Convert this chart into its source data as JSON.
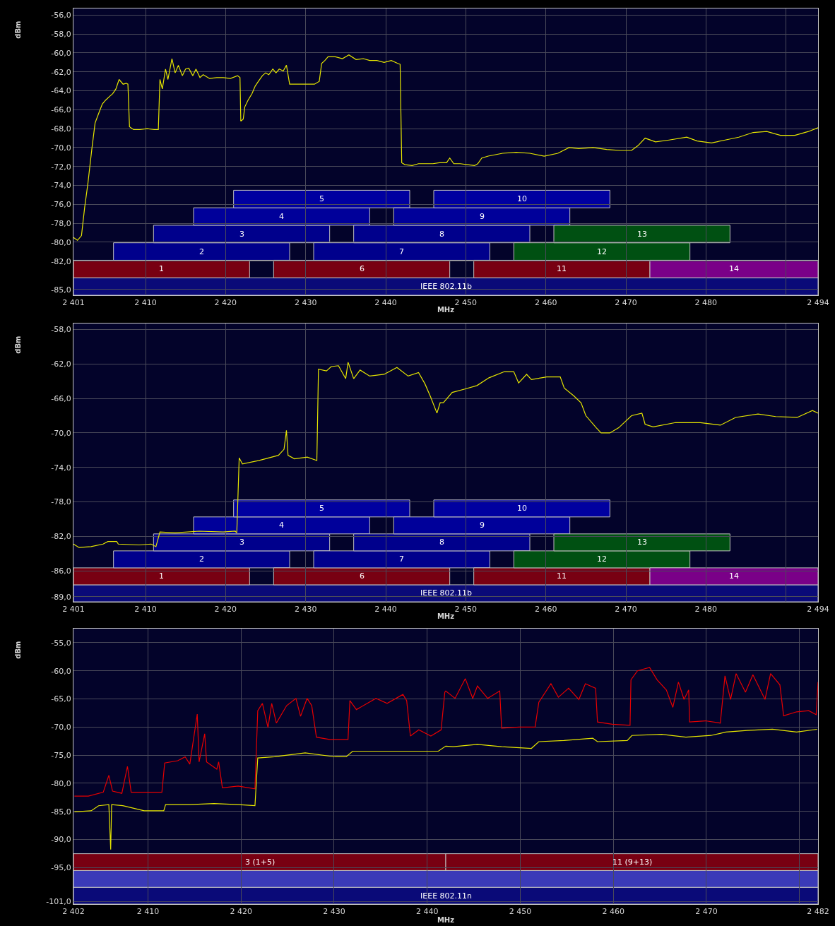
{
  "chart_data": [
    {
      "type": "line",
      "xlabel": "MHz",
      "ylabel": "dBm",
      "grid": true,
      "marker": "none",
      "line_style": "solid",
      "xlim": [
        2401,
        2494
      ],
      "xticks": [
        {
          "value": 2401,
          "label": "2 401"
        },
        {
          "value": 2410,
          "label": "2 410"
        },
        {
          "value": 2420,
          "label": "2 420"
        },
        {
          "value": 2430,
          "label": "2 430"
        },
        {
          "value": 2440,
          "label": "2 440"
        },
        {
          "value": 2450,
          "label": "2 450"
        },
        {
          "value": 2460,
          "label": "2 460"
        },
        {
          "value": 2470,
          "label": "2 470"
        },
        {
          "value": 2480,
          "label": "2 480"
        },
        {
          "value": 2490,
          "label": null
        },
        {
          "value": 2494,
          "label": "2 494"
        }
      ],
      "ylim": [
        -85.6,
        -55.3
      ],
      "yticks": [
        {
          "value": -56,
          "label": "-56,0"
        },
        {
          "value": -58,
          "label": "-58,0"
        },
        {
          "value": -60,
          "label": "-60,0"
        },
        {
          "value": -62,
          "label": "-62,0"
        },
        {
          "value": -64,
          "label": "-64,0"
        },
        {
          "value": -66,
          "label": "-66,0"
        },
        {
          "value": -68,
          "label": "-68,0"
        },
        {
          "value": -70,
          "label": "-70,0"
        },
        {
          "value": -72,
          "label": "-72,0"
        },
        {
          "value": -74,
          "label": "-74,0"
        },
        {
          "value": -76,
          "label": "-76,0"
        },
        {
          "value": -78,
          "label": "-78,0"
        },
        {
          "value": -80,
          "label": "-80,0"
        },
        {
          "value": -82,
          "label": "-82,0"
        },
        {
          "value": -85,
          "label": "-85,0"
        }
      ],
      "bands": [
        {
          "axis": "x",
          "from": 2401,
          "to": 2494,
          "label": "IEEE 802.11b",
          "color": "#0a0a78"
        },
        {
          "axis": "x",
          "from": 2401,
          "to": 2423,
          "label": "1",
          "color": "#780012"
        },
        {
          "axis": "x",
          "from": 2406,
          "to": 2428,
          "label": "2",
          "color": "#00008c"
        },
        {
          "axis": "x",
          "from": 2411,
          "to": 2433,
          "label": "3",
          "color": "#00008c"
        },
        {
          "axis": "x",
          "from": 2416,
          "to": 2438,
          "label": "4",
          "color": "#00009a"
        },
        {
          "axis": "x",
          "from": 2421,
          "to": 2443,
          "label": "5",
          "color": "#0000a0"
        },
        {
          "axis": "x",
          "from": 2426,
          "to": 2448,
          "label": "6",
          "color": "#780012"
        },
        {
          "axis": "x",
          "from": 2431,
          "to": 2453,
          "label": "7",
          "color": "#00008c"
        },
        {
          "axis": "x",
          "from": 2436,
          "to": 2458,
          "label": "8",
          "color": "#00008c"
        },
        {
          "axis": "x",
          "from": 2441,
          "to": 2463,
          "label": "9",
          "color": "#00009a"
        },
        {
          "axis": "x",
          "from": 2446,
          "to": 2468,
          "label": "10",
          "color": "#0000a0"
        },
        {
          "axis": "x",
          "from": 2451,
          "to": 2473,
          "label": "11",
          "color": "#780012"
        },
        {
          "axis": "x",
          "from": 2456,
          "to": 2478,
          "label": "12",
          "color": "#005012"
        },
        {
          "axis": "x",
          "from": 2461,
          "to": 2483,
          "label": "13",
          "color": "#005012"
        },
        {
          "axis": "x",
          "from": 2473,
          "to": 2494,
          "label": "14",
          "color": "#7a0088"
        }
      ],
      "series": [
        {
          "color": "#e6e600",
          "x": [
            2401,
            2401.5,
            2402,
            2402.4,
            2402.8,
            2403.3,
            2403.7,
            2404.1,
            2404.6,
            2405,
            2405.5,
            2405.9,
            2406.3,
            2406.7,
            2407.2,
            2407.6,
            2407.8,
            2408,
            2408.5,
            2409.3,
            2410.2,
            2411.1,
            2411.6,
            2411.8,
            2412.1,
            2412.5,
            2412.8,
            2413.3,
            2413.7,
            2414.1,
            2414.6,
            2415,
            2415.4,
            2415.9,
            2416.3,
            2416.8,
            2417.2,
            2418,
            2418.9,
            2419.7,
            2420.6,
            2421.5,
            2421.8,
            2421.9,
            2422.2,
            2422.4,
            2422.8,
            2423.3,
            2423.7,
            2424.1,
            2424.6,
            2425,
            2425.4,
            2425.9,
            2426.3,
            2426.7,
            2427.2,
            2427.6,
            2428,
            2428.5,
            2429.3,
            2430.2,
            2431.1,
            2431.7,
            2432,
            2432.4,
            2432.8,
            2433.7,
            2434.6,
            2435.4,
            2436.3,
            2437.2,
            2438,
            2438.9,
            2439.8,
            2440.7,
            2441.5,
            2441.8,
            2442,
            2442.4,
            2443.3,
            2444.1,
            2445,
            2445.9,
            2446.7,
            2447.6,
            2448,
            2448.5,
            2449.3,
            2450.2,
            2451.1,
            2451.5,
            2452,
            2452.8,
            2454.6,
            2456.3,
            2458,
            2459.8,
            2461.5,
            2462.9,
            2464.1,
            2465.9,
            2467.6,
            2469.3,
            2470.7,
            2471.5,
            2472.4,
            2473.7,
            2475.4,
            2477.6,
            2478.9,
            2480.7,
            2482.4,
            2484.1,
            2485.9,
            2487.6,
            2489.3,
            2491.1,
            2492.8,
            2494
          ],
          "values": [
            -79.5,
            -79.8,
            -79.3,
            -76.3,
            -73.8,
            -70.1,
            -67.4,
            -66.5,
            -65.4,
            -65.0,
            -64.6,
            -64.3,
            -63.8,
            -62.8,
            -63.3,
            -63.2,
            -63.3,
            -67.8,
            -68.1,
            -68.1,
            -68.0,
            -68.1,
            -68.1,
            -62.8,
            -63.8,
            -61.7,
            -62.8,
            -60.6,
            -62.1,
            -61.3,
            -62.4,
            -61.7,
            -61.6,
            -62.4,
            -61.7,
            -62.6,
            -62.3,
            -62.7,
            -62.6,
            -62.6,
            -62.7,
            -62.4,
            -62.6,
            -67.2,
            -67.0,
            -65.7,
            -65.0,
            -64.3,
            -63.5,
            -63.0,
            -62.4,
            -62.1,
            -62.3,
            -61.7,
            -62.1,
            -61.7,
            -61.9,
            -61.3,
            -63.3,
            -63.3,
            -63.3,
            -63.3,
            -63.3,
            -63.0,
            -61.1,
            -60.8,
            -60.4,
            -60.4,
            -60.6,
            -60.2,
            -60.7,
            -60.6,
            -60.8,
            -60.8,
            -61.0,
            -60.8,
            -61.1,
            -61.2,
            -71.6,
            -71.8,
            -71.9,
            -71.7,
            -71.7,
            -71.7,
            -71.6,
            -71.6,
            -71.1,
            -71.7,
            -71.7,
            -71.8,
            -71.9,
            -71.7,
            -71.1,
            -70.9,
            -70.6,
            -70.5,
            -70.6,
            -70.9,
            -70.6,
            -70.0,
            -70.1,
            -70.0,
            -70.2,
            -70.3,
            -70.3,
            -69.8,
            -69.0,
            -69.4,
            -69.2,
            -68.9,
            -69.3,
            -69.5,
            -69.2,
            -68.9,
            -68.4,
            -68.3,
            -68.7,
            -68.7,
            -68.3,
            -67.9
          ]
        }
      ]
    },
    {
      "type": "line",
      "xlabel": "MHz",
      "ylabel": "dBm",
      "grid": true,
      "marker": "none",
      "line_style": "solid",
      "xlim": [
        2401,
        2494
      ],
      "xticks": [
        {
          "value": 2401,
          "label": "2 401"
        },
        {
          "value": 2410,
          "label": "2 410"
        },
        {
          "value": 2420,
          "label": "2 420"
        },
        {
          "value": 2430,
          "label": "2 430"
        },
        {
          "value": 2440,
          "label": "2 440"
        },
        {
          "value": 2450,
          "label": "2 450"
        },
        {
          "value": 2460,
          "label": "2 460"
        },
        {
          "value": 2470,
          "label": "2 470"
        },
        {
          "value": 2480,
          "label": "2 480"
        },
        {
          "value": 2490,
          "label": null
        },
        {
          "value": 2494,
          "label": "2 494"
        }
      ],
      "ylim": [
        -89.6,
        -57.3
      ],
      "yticks": [
        {
          "value": -58,
          "label": "-58,0"
        },
        {
          "value": -62,
          "label": "-62,0"
        },
        {
          "value": -66,
          "label": "-66,0"
        },
        {
          "value": -70,
          "label": "-70,0"
        },
        {
          "value": -74,
          "label": "-74,0"
        },
        {
          "value": -78,
          "label": "-78,0"
        },
        {
          "value": -82,
          "label": "-82,0"
        },
        {
          "value": -86,
          "label": "-86,0"
        },
        {
          "value": -89,
          "label": "-89,0"
        }
      ],
      "bands": [
        {
          "axis": "x",
          "from": 2401,
          "to": 2494,
          "label": "IEEE 802.11b",
          "color": "#0a0a78"
        },
        {
          "axis": "x",
          "from": 2401,
          "to": 2423,
          "label": "1",
          "color": "#780012"
        },
        {
          "axis": "x",
          "from": 2406,
          "to": 2428,
          "label": "2",
          "color": "#00008c"
        },
        {
          "axis": "x",
          "from": 2411,
          "to": 2433,
          "label": "3",
          "color": "#00008c"
        },
        {
          "axis": "x",
          "from": 2416,
          "to": 2438,
          "label": "4",
          "color": "#00009a"
        },
        {
          "axis": "x",
          "from": 2421,
          "to": 2443,
          "label": "5",
          "color": "#0000a0"
        },
        {
          "axis": "x",
          "from": 2426,
          "to": 2448,
          "label": "6",
          "color": "#780012"
        },
        {
          "axis": "x",
          "from": 2431,
          "to": 2453,
          "label": "7",
          "color": "#00008c"
        },
        {
          "axis": "x",
          "from": 2436,
          "to": 2458,
          "label": "8",
          "color": "#00008c"
        },
        {
          "axis": "x",
          "from": 2441,
          "to": 2463,
          "label": "9",
          "color": "#00009a"
        },
        {
          "axis": "x",
          "from": 2446,
          "to": 2468,
          "label": "10",
          "color": "#0000a0"
        },
        {
          "axis": "x",
          "from": 2451,
          "to": 2473,
          "label": "11",
          "color": "#780012"
        },
        {
          "axis": "x",
          "from": 2456,
          "to": 2478,
          "label": "12",
          "color": "#005012"
        },
        {
          "axis": "x",
          "from": 2461,
          "to": 2483,
          "label": "13",
          "color": "#005012"
        },
        {
          "axis": "x",
          "from": 2473,
          "to": 2494,
          "label": "14",
          "color": "#7a0088"
        }
      ],
      "series": [
        {
          "color": "#e6e600",
          "x": [
            2401,
            2401.7,
            2403.2,
            2404.7,
            2405.3,
            2406.4,
            2406.6,
            2409.2,
            2410.7,
            2411.3,
            2411.8,
            2413.7,
            2416.7,
            2419.7,
            2421.2,
            2421.4,
            2421.7,
            2422.1,
            2424.2,
            2426.6,
            2427.3,
            2427.6,
            2427.8,
            2428.6,
            2430.2,
            2431.4,
            2431.6,
            2432.6,
            2433.2,
            2434.1,
            2435,
            2435.3,
            2436,
            2436.8,
            2438,
            2439.8,
            2441.4,
            2442.8,
            2444.1,
            2444.9,
            2445.6,
            2446.4,
            2446.8,
            2447.2,
            2448.3,
            2449.9,
            2451.4,
            2452.9,
            2454.8,
            2456,
            2456.6,
            2457.6,
            2458.2,
            2460.1,
            2461.8,
            2462.3,
            2463.5,
            2464.4,
            2465,
            2466.3,
            2466.9,
            2468,
            2469.1,
            2470.7,
            2472,
            2472.4,
            2473.4,
            2476.2,
            2479.3,
            2481.8,
            2483.7,
            2486.5,
            2488.7,
            2491.4,
            2493.3,
            2494
          ],
          "values": [
            -82.9,
            -83.3,
            -83.2,
            -82.9,
            -82.6,
            -82.6,
            -82.9,
            -83.0,
            -82.9,
            -83.2,
            -81.5,
            -81.6,
            -81.4,
            -81.5,
            -81.4,
            -81.6,
            -72.9,
            -73.6,
            -73.2,
            -72.6,
            -71.9,
            -69.7,
            -72.6,
            -73.0,
            -72.8,
            -73.2,
            -62.6,
            -62.8,
            -62.3,
            -62.2,
            -63.7,
            -61.8,
            -63.7,
            -62.7,
            -63.4,
            -63.2,
            -62.4,
            -63.4,
            -63.0,
            -64.3,
            -65.8,
            -67.7,
            -66.5,
            -66.5,
            -65.3,
            -64.9,
            -64.5,
            -63.6,
            -62.9,
            -62.9,
            -64.2,
            -63.2,
            -63.8,
            -63.5,
            -63.5,
            -64.8,
            -65.7,
            -66.5,
            -68.0,
            -69.4,
            -70.0,
            -70.0,
            -69.4,
            -68.0,
            -67.7,
            -69.0,
            -69.3,
            -68.8,
            -68.8,
            -69.1,
            -68.2,
            -67.8,
            -68.1,
            -68.2,
            -67.4,
            -67.7
          ]
        }
      ]
    },
    {
      "type": "line",
      "xlabel": "MHz",
      "ylabel": "dBm",
      "grid": true,
      "marker": "none",
      "line_style": "solid",
      "xlim": [
        2402,
        2482
      ],
      "xticks": [
        {
          "value": 2402,
          "label": "2 402"
        },
        {
          "value": 2410,
          "label": "2 410"
        },
        {
          "value": 2420,
          "label": "2 420"
        },
        {
          "value": 2430,
          "label": "2 430"
        },
        {
          "value": 2440,
          "label": "2 440"
        },
        {
          "value": 2450,
          "label": "2 450"
        },
        {
          "value": 2460,
          "label": "2 460"
        },
        {
          "value": 2470,
          "label": "2 470"
        },
        {
          "value": 2480,
          "label": null
        },
        {
          "value": 2482,
          "label": "2 482"
        }
      ],
      "ylim": [
        -101.5,
        -52.5
      ],
      "yticks": [
        {
          "value": -55,
          "label": "-55,0"
        },
        {
          "value": -60,
          "label": "-60,0"
        },
        {
          "value": -65,
          "label": "-65,0"
        },
        {
          "value": -70,
          "label": "-70,0"
        },
        {
          "value": -75,
          "label": "-75,0"
        },
        {
          "value": -80,
          "label": "-80,0"
        },
        {
          "value": -85,
          "label": "-85,0"
        },
        {
          "value": -90,
          "label": "-90,0"
        },
        {
          "value": -95,
          "label": "-95,0"
        },
        {
          "value": -101,
          "label": "-101,0"
        }
      ],
      "bands": [
        {
          "axis": "x",
          "from": 2402,
          "to": 2482,
          "label": "IEEE 802.11n",
          "color": "#0a0a78"
        },
        {
          "axis": "x",
          "from": 2402,
          "to": 2482,
          "color": "#3a3ab8"
        },
        {
          "axis": "x",
          "from": 2402,
          "to": 2442,
          "label": "3 (1+5)",
          "color": "#780012"
        },
        {
          "axis": "x",
          "from": 2442,
          "to": 2482,
          "label": "11 (9+13)",
          "color": "#780012"
        }
      ],
      "series": [
        {
          "color": "#e60000",
          "x": [
            2402.1,
            2403.6,
            2405.2,
            2405.8,
            2406.2,
            2407.2,
            2407.8,
            2408.2,
            2409.3,
            2411.5,
            2411.8,
            2413.2,
            2414,
            2414.5,
            2415.3,
            2415.5,
            2416.1,
            2416.3,
            2417.4,
            2417.6,
            2418,
            2419.7,
            2421.5,
            2421.8,
            2422.3,
            2422.9,
            2423.3,
            2423.8,
            2424.9,
            2425.9,
            2426.4,
            2427.1,
            2427.6,
            2428.1,
            2429.5,
            2431.5,
            2431.7,
            2432.4,
            2434.5,
            2435.7,
            2437.4,
            2437.8,
            2438.2,
            2439.1,
            2440.4,
            2441.5,
            2441.9,
            2442,
            2443,
            2444.1,
            2444.9,
            2445.4,
            2446.5,
            2447.8,
            2448,
            2449.9,
            2451.6,
            2452,
            2453.3,
            2454.1,
            2455.2,
            2456.3,
            2457,
            2458.1,
            2458.3,
            2459.9,
            2461.8,
            2461.9,
            2462.6,
            2463.9,
            2464.7,
            2465.7,
            2466.4,
            2467,
            2467.6,
            2468.1,
            2468.2,
            2469.9,
            2471.5,
            2472,
            2472.6,
            2473.2,
            2474.2,
            2475,
            2476.3,
            2476.9,
            2477.9,
            2478.3,
            2479.7,
            2481,
            2481.8,
            2482
          ],
          "values": [
            -82.3,
            -82.3,
            -81.6,
            -78.6,
            -81.4,
            -81.8,
            -77.0,
            -81.6,
            -81.6,
            -81.6,
            -76.4,
            -76.0,
            -75.3,
            -76.6,
            -67.7,
            -76.2,
            -71.2,
            -76.2,
            -77.5,
            -76.2,
            -80.8,
            -80.5,
            -81.0,
            -67.1,
            -65.8,
            -70.1,
            -65.8,
            -69.3,
            -66.2,
            -64.9,
            -68.1,
            -64.9,
            -66.2,
            -71.8,
            -72.2,
            -72.2,
            -65.3,
            -66.9,
            -64.9,
            -65.8,
            -64.2,
            -65.3,
            -71.6,
            -70.5,
            -71.6,
            -70.5,
            -63.8,
            -63.6,
            -64.9,
            -61.4,
            -64.9,
            -62.7,
            -64.9,
            -63.6,
            -70.2,
            -70.0,
            -70.0,
            -65.6,
            -62.3,
            -64.7,
            -63.1,
            -65.1,
            -62.3,
            -63.1,
            -69.1,
            -69.5,
            -69.7,
            -61.6,
            -60.0,
            -59.4,
            -61.6,
            -63.4,
            -66.5,
            -62.0,
            -65.1,
            -63.4,
            -69.1,
            -68.9,
            -69.3,
            -60.9,
            -65.1,
            -60.5,
            -63.8,
            -60.7,
            -65.1,
            -60.5,
            -62.5,
            -68.0,
            -67.3,
            -67.1,
            -67.8,
            -62.0
          ]
        },
        {
          "color": "#e6e600",
          "x": [
            2402.1,
            2403.9,
            2404.7,
            2405.8,
            2406,
            2406.1,
            2407.3,
            2409.6,
            2411.7,
            2411.9,
            2414.5,
            2417.1,
            2419.7,
            2421.5,
            2421.8,
            2423.6,
            2426.9,
            2430.1,
            2431.3,
            2432,
            2435.2,
            2437.8,
            2441.2,
            2442,
            2442.8,
            2445.4,
            2448,
            2451.2,
            2452,
            2454.7,
            2457.8,
            2458.3,
            2461.5,
            2462,
            2465.2,
            2467.8,
            2470.5,
            2472.1,
            2474.4,
            2477.1,
            2479.7,
            2481.9
          ],
          "values": [
            -85.1,
            -84.9,
            -84.0,
            -83.8,
            -91.8,
            -83.8,
            -84.0,
            -84.9,
            -84.9,
            -83.8,
            -83.8,
            -83.6,
            -83.8,
            -84.0,
            -75.5,
            -75.3,
            -74.6,
            -75.3,
            -75.3,
            -74.3,
            -74.3,
            -74.3,
            -74.3,
            -73.4,
            -73.5,
            -73.1,
            -73.5,
            -73.8,
            -72.6,
            -72.4,
            -72.0,
            -72.6,
            -72.4,
            -71.5,
            -71.3,
            -71.8,
            -71.5,
            -70.9,
            -70.6,
            -70.4,
            -70.9,
            -70.4
          ]
        }
      ]
    }
  ]
}
